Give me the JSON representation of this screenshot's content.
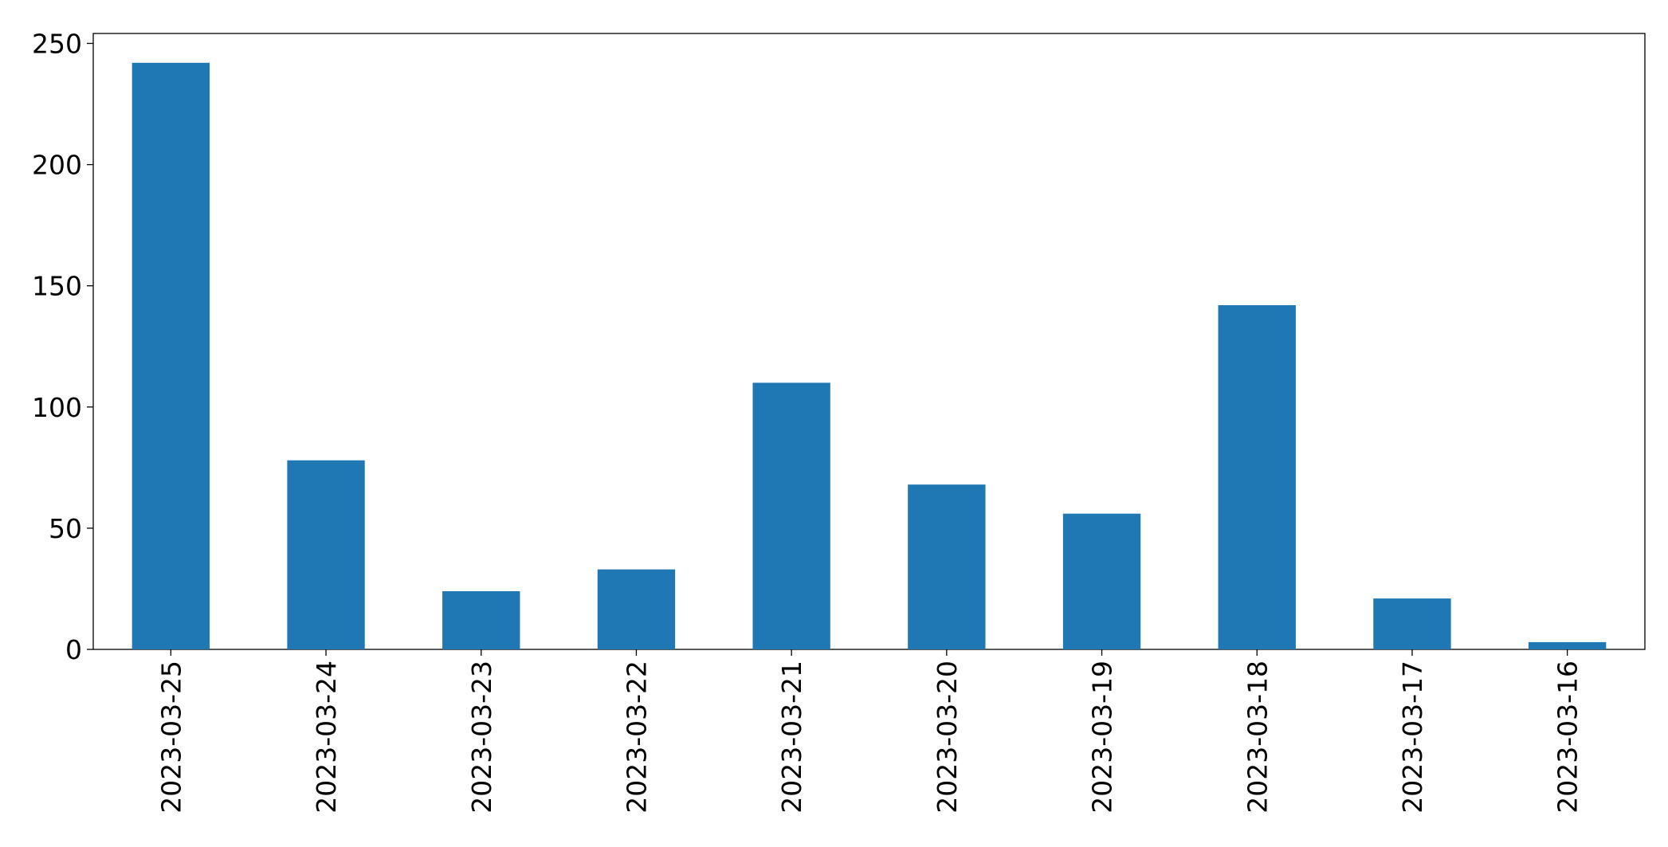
{
  "chart_data": {
    "type": "bar",
    "categories": [
      "2023-03-25",
      "2023-03-24",
      "2023-03-23",
      "2023-03-22",
      "2023-03-21",
      "2023-03-20",
      "2023-03-19",
      "2023-03-18",
      "2023-03-17",
      "2023-03-16"
    ],
    "values": [
      242,
      78,
      24,
      33,
      110,
      68,
      56,
      142,
      21,
      3
    ],
    "color": "#1f77b4",
    "ylim": [
      0,
      254.1
    ],
    "yticks": [
      0,
      50,
      100,
      150,
      200,
      250
    ],
    "grid": false
  }
}
